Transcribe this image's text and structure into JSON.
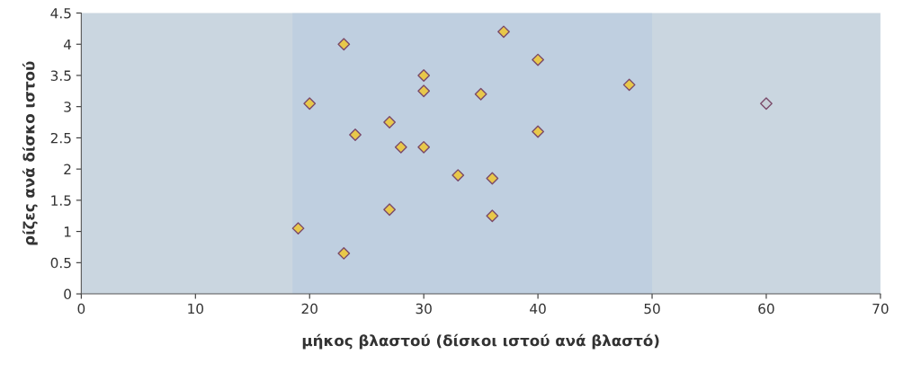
{
  "chart_data": {
    "type": "scatter",
    "xlabel": "μήκος βλαστού (δίσκοι ιστού ανά βλαστό)",
    "ylabel": "ρίζες ανά δίσκο ιστού",
    "x": [
      23,
      37,
      40,
      30,
      48,
      30,
      35,
      20,
      60,
      27,
      40,
      24,
      28,
      30,
      33,
      36,
      27,
      36,
      19,
      23
    ],
    "values": [
      4.0,
      4.2,
      3.75,
      3.5,
      3.35,
      3.25,
      3.2,
      3.05,
      3.05,
      2.75,
      2.6,
      2.55,
      2.35,
      2.35,
      1.9,
      1.85,
      1.35,
      1.25,
      1.05,
      0.65
    ],
    "colors": [
      "#e8c84a",
      "#e8c84a",
      "#e8c84a",
      "#e8c84a",
      "#e8c84a",
      "#e8c84a",
      "#e8c84a",
      "#e8c84a",
      "#c8d0d8",
      "#e8c84a",
      "#e8c84a",
      "#e8c84a",
      "#e8c84a",
      "#e8c84a",
      "#e8c84a",
      "#e8c84a",
      "#e8c84a",
      "#e8c84a",
      "#e8c84a",
      "#e8c84a"
    ],
    "marker": "diamond",
    "xlim": [
      0,
      70
    ],
    "xticks": [
      0,
      10,
      20,
      30,
      40,
      50,
      60,
      70
    ],
    "ylim": [
      0,
      4.5
    ],
    "yticks": [
      0,
      0.5,
      1,
      1.5,
      2,
      2.5,
      3,
      3.5,
      4,
      4.5
    ],
    "bands": [
      {
        "axis": "x",
        "from": 18.5,
        "to": 50,
        "color": "#bfcfe0"
      }
    ],
    "grid": false
  }
}
